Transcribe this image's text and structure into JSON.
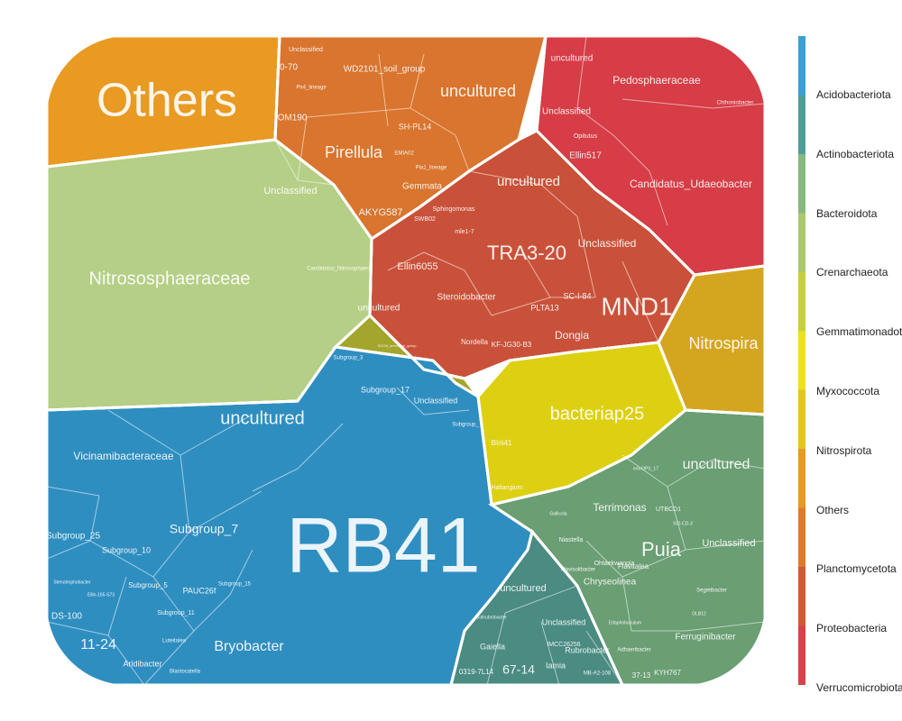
{
  "chart_data": {
    "type": "voronoi-treemap",
    "legend": {
      "placement": "right",
      "phyla": [
        {
          "name": "Verrucomicrobiota",
          "color": "#d94249"
        },
        {
          "name": "Proteobacteria",
          "color": "#d15a35"
        },
        {
          "name": "Planctomycetota",
          "color": "#e07a2a"
        },
        {
          "name": "Others",
          "color": "#e89a22"
        },
        {
          "name": "Nitrospirota",
          "color": "#e5c51c"
        },
        {
          "name": "Myxococcota",
          "color": "#efe01c"
        },
        {
          "name": "Gemmatimonadota",
          "color": "#c6cf3e"
        },
        {
          "name": "Crenarchaeota",
          "color": "#a9c96b"
        },
        {
          "name": "Bacteroidota",
          "color": "#86b882"
        },
        {
          "name": "Actinobacteriota",
          "color": "#4d9f9b"
        },
        {
          "name": "Acidobacteriota",
          "color": "#3aa0d6"
        }
      ]
    },
    "regions": [
      {
        "phylum": "Others",
        "fill": "#e89a22",
        "taxa": [
          {
            "name": "Others"
          }
        ]
      },
      {
        "phylum": "Planctomycetota",
        "fill": "#d9752e",
        "taxa": [
          {
            "name": "uncultured"
          },
          {
            "name": "Pirellula"
          },
          {
            "name": "WD2101_soil_group"
          },
          {
            "name": "SH-PL14"
          },
          {
            "name": "Gemmata"
          },
          {
            "name": "AKYG587"
          },
          {
            "name": "OM190"
          },
          {
            "name": "Unclassified"
          },
          {
            "name": "Pir4_lineage"
          },
          {
            "name": "Pla1_lineage"
          },
          {
            "name": "EMIA02"
          },
          {
            "name": "0-70"
          }
        ]
      },
      {
        "phylum": "Verrucomicrobiota",
        "fill": "#d63d46",
        "taxa": [
          {
            "name": "Candidatus_Udaeobacter"
          },
          {
            "name": "Pedosphaeraceae"
          },
          {
            "name": "uncultured"
          },
          {
            "name": "Unclassified"
          },
          {
            "name": "Ellin517"
          },
          {
            "name": "Opitutus"
          },
          {
            "name": "Chthoniobacter"
          }
        ]
      },
      {
        "phylum": "Proteobacteria",
        "fill": "#c9513a",
        "taxa": [
          {
            "name": "TRA3-20"
          },
          {
            "name": "MND1"
          },
          {
            "name": "uncultured"
          },
          {
            "name": "Unclassified"
          },
          {
            "name": "Ellin6055"
          },
          {
            "name": "Steroidobacter"
          },
          {
            "name": "Dongia"
          },
          {
            "name": "SC-I-84"
          },
          {
            "name": "PLTA13"
          },
          {
            "name": "KF-JG30-B3"
          },
          {
            "name": "Nordella"
          },
          {
            "name": "Sphingomonas"
          },
          {
            "name": "SWB02"
          },
          {
            "name": "mle1-7"
          }
        ]
      },
      {
        "phylum": "Crenarchaeota",
        "fill": "#b5cf86",
        "taxa": [
          {
            "name": "Nitrososphaeraceae"
          },
          {
            "name": "Unclassified"
          },
          {
            "name": "Candidatus_Nitrosophaera"
          }
        ]
      },
      {
        "phylum": "Nitrospirota",
        "fill": "#d4a620",
        "taxa": [
          {
            "name": "Nitrospira"
          }
        ]
      },
      {
        "phylum": "Myxococcota",
        "fill": "#ddd012",
        "taxa": [
          {
            "name": "bacteriap25"
          },
          {
            "name": "BIrii41"
          },
          {
            "name": "Haliangium"
          }
        ]
      },
      {
        "phylum": "Gemmatimonadota",
        "fill": "#a3a52c",
        "taxa": [
          {
            "name": "uncultured"
          },
          {
            "name": "S0134_terrestrial_group"
          }
        ]
      },
      {
        "phylum": "Acidobacteriota",
        "fill": "#2f8ec0",
        "taxa": [
          {
            "name": "RB41"
          },
          {
            "name": "uncultured"
          },
          {
            "name": "Vicinamibacteraceae"
          },
          {
            "name": "Subgroup_7"
          },
          {
            "name": "Bryobacter"
          },
          {
            "name": "Subgroup_25"
          },
          {
            "name": "Subgroup_10"
          },
          {
            "name": "Subgroup_5"
          },
          {
            "name": "PAUC26f"
          },
          {
            "name": "Subgroup_15"
          },
          {
            "name": "Subgroup_11"
          },
          {
            "name": "Subgroup_17"
          },
          {
            "name": "Unclassified"
          },
          {
            "name": "11-24"
          },
          {
            "name": "DS-100"
          },
          {
            "name": "Aridibacter"
          },
          {
            "name": "Blastocatella"
          },
          {
            "name": "Luteitalea"
          },
          {
            "name": "Ellin-165-S73"
          },
          {
            "name": "Subgroup_3"
          },
          {
            "name": "Stenotrophobacter"
          },
          {
            "name": "Subgroup_"
          }
        ]
      },
      {
        "phylum": "Bacteroidota",
        "fill": "#6a9e73",
        "taxa": [
          {
            "name": "Puia"
          },
          {
            "name": "uncultured"
          },
          {
            "name": "Terrimonas"
          },
          {
            "name": "Unclassified"
          },
          {
            "name": "Ferruginibacter"
          },
          {
            "name": "Chryseolinea"
          },
          {
            "name": "Flavitalea"
          },
          {
            "name": "Niastella"
          },
          {
            "name": "Ohtaekwangia"
          },
          {
            "name": "Flavisolibacter"
          },
          {
            "name": "Segetibacter"
          },
          {
            "name": "Adhaeribacter"
          },
          {
            "name": "Edaphobaculum"
          },
          {
            "name": "37-13"
          },
          {
            "name": "OLB12"
          },
          {
            "name": "UTBCD1"
          },
          {
            "name": "KYH767"
          },
          {
            "name": "env.OPS_17"
          },
          {
            "name": "Gallicola"
          },
          {
            "name": "SCI-CD-3"
          }
        ]
      },
      {
        "phylum": "Actinobacteriota",
        "fill": "#4a8b82",
        "taxa": [
          {
            "name": "uncultured"
          },
          {
            "name": "67-14"
          },
          {
            "name": "Gaiella"
          },
          {
            "name": "0319-7L14"
          },
          {
            "name": "Unclassified"
          },
          {
            "name": "IMCC26256"
          },
          {
            "name": "Rubrobacter"
          },
          {
            "name": "Iamia"
          },
          {
            "name": "MB-A2-108"
          },
          {
            "name": "Solirubrobacter"
          }
        ]
      }
    ]
  }
}
